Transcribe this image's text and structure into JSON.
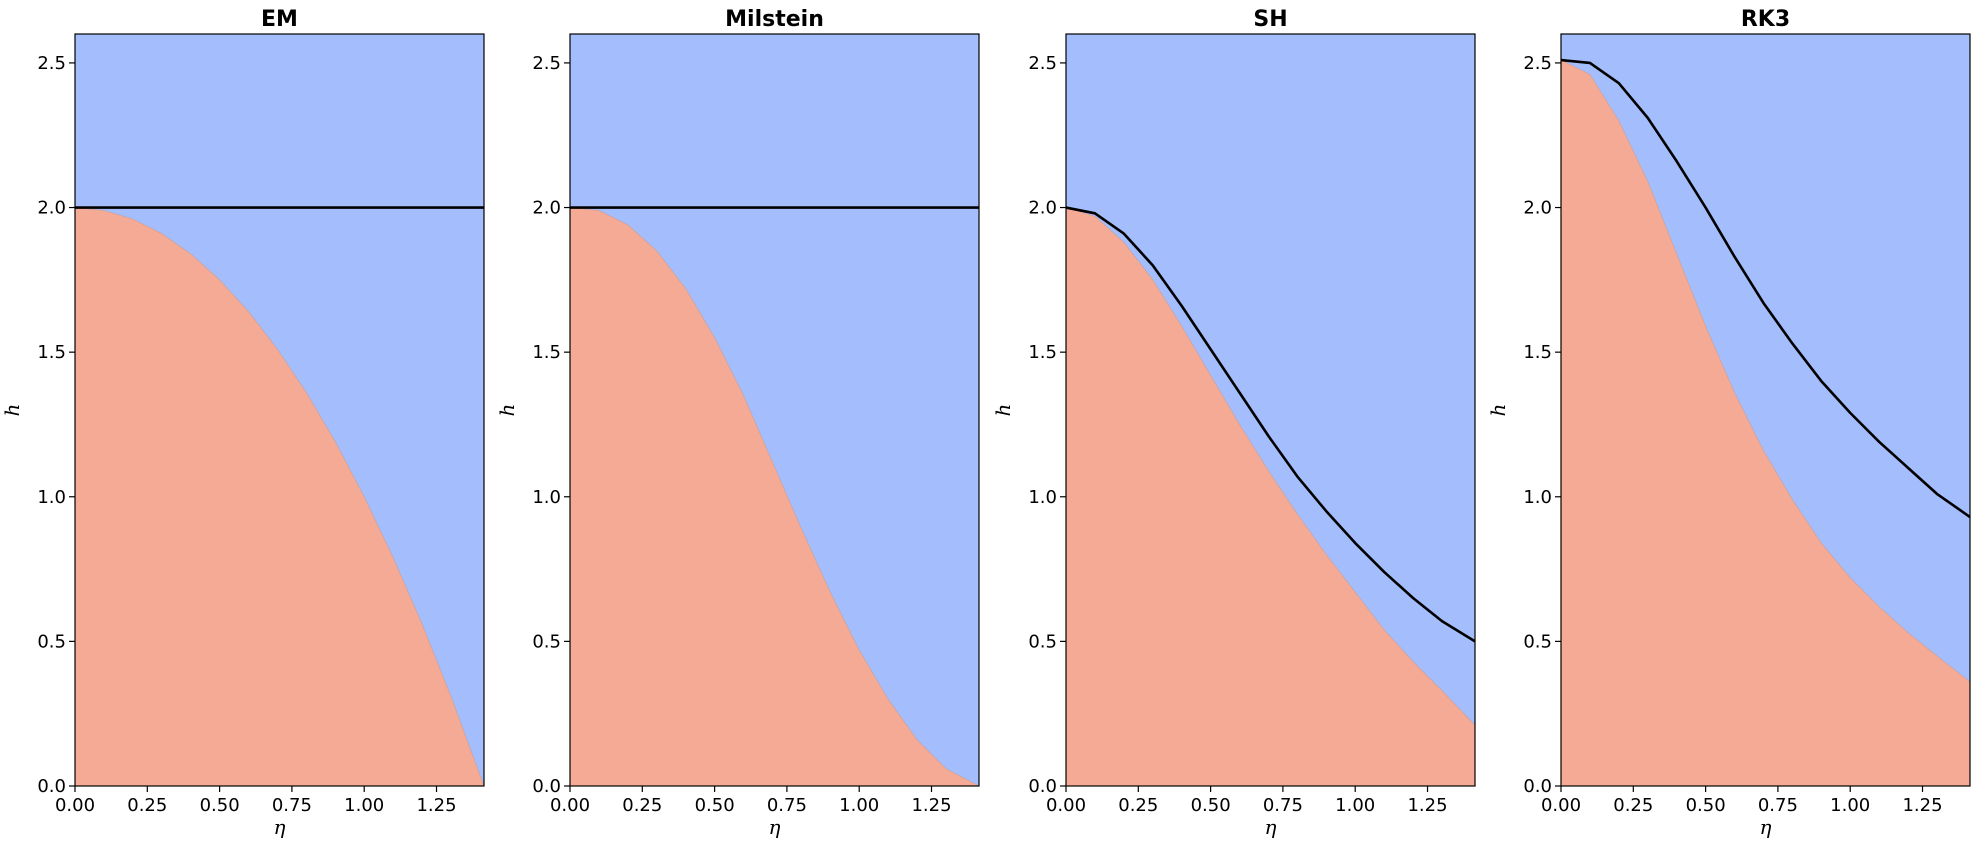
{
  "chart_data": [
    {
      "type": "area",
      "title": "EM",
      "xlabel": "η",
      "ylabel": "h",
      "xlim": [
        0,
        1.4142
      ],
      "ylim": [
        0,
        2.6
      ],
      "xticks": [
        "0.00",
        "0.25",
        "0.50",
        "0.75",
        "1.00",
        "1.25"
      ],
      "yticks": [
        "0.0",
        "0.5",
        "1.0",
        "1.5",
        "2.0",
        "2.5"
      ],
      "colors": {
        "below": "#f4aa94",
        "above": "#a4bdfc",
        "curve": "#000000"
      },
      "x": [
        0,
        0.1,
        0.2,
        0.3,
        0.4,
        0.5,
        0.6,
        0.7,
        0.8,
        0.9,
        1.0,
        1.1,
        1.2,
        1.3,
        1.4142
      ],
      "region_boundary": [
        2.0,
        1.99,
        1.96,
        1.91,
        1.84,
        1.75,
        1.64,
        1.51,
        1.36,
        1.19,
        1.0,
        0.79,
        0.56,
        0.31,
        0.0
      ],
      "curve": [
        2.0,
        2.0,
        2.0,
        2.0,
        2.0,
        2.0,
        2.0,
        2.0,
        2.0,
        2.0,
        2.0,
        2.0,
        2.0,
        2.0,
        2.0
      ]
    },
    {
      "type": "area",
      "title": "Milstein",
      "xlabel": "η",
      "ylabel": "h",
      "xlim": [
        0,
        1.4142
      ],
      "ylim": [
        0,
        2.6
      ],
      "xticks": [
        "0.00",
        "0.25",
        "0.50",
        "0.75",
        "1.00",
        "1.25"
      ],
      "yticks": [
        "0.0",
        "0.5",
        "1.0",
        "1.5",
        "2.0",
        "2.5"
      ],
      "colors": {
        "below": "#f4aa94",
        "above": "#a4bdfc",
        "curve": "#000000"
      },
      "x": [
        0,
        0.1,
        0.2,
        0.3,
        0.4,
        0.5,
        0.6,
        0.7,
        0.8,
        0.9,
        1.0,
        1.1,
        1.2,
        1.3,
        1.4142
      ],
      "region_boundary": [
        2.0,
        1.99,
        1.94,
        1.85,
        1.72,
        1.55,
        1.35,
        1.12,
        0.89,
        0.67,
        0.47,
        0.3,
        0.16,
        0.06,
        0.0
      ],
      "curve": [
        2.0,
        2.0,
        2.0,
        2.0,
        2.0,
        2.0,
        2.0,
        2.0,
        2.0,
        2.0,
        2.0,
        2.0,
        2.0,
        2.0,
        2.0
      ]
    },
    {
      "type": "area",
      "title": "SH",
      "xlabel": "η",
      "ylabel": "h",
      "xlim": [
        0,
        1.4142
      ],
      "ylim": [
        0,
        2.6
      ],
      "xticks": [
        "0.00",
        "0.25",
        "0.50",
        "0.75",
        "1.00",
        "1.25"
      ],
      "yticks": [
        "0.0",
        "0.5",
        "1.0",
        "1.5",
        "2.0",
        "2.5"
      ],
      "colors": {
        "below": "#f4aa94",
        "above": "#a4bdfc",
        "curve": "#000000"
      },
      "x": [
        0,
        0.1,
        0.2,
        0.3,
        0.4,
        0.5,
        0.6,
        0.7,
        0.8,
        0.9,
        1.0,
        1.1,
        1.2,
        1.3,
        1.4142
      ],
      "region_boundary": [
        2.0,
        1.97,
        1.88,
        1.75,
        1.59,
        1.42,
        1.25,
        1.09,
        0.94,
        0.8,
        0.67,
        0.54,
        0.43,
        0.33,
        0.21
      ],
      "curve": [
        2.0,
        1.98,
        1.91,
        1.8,
        1.66,
        1.51,
        1.36,
        1.21,
        1.07,
        0.95,
        0.84,
        0.74,
        0.65,
        0.57,
        0.5
      ]
    },
    {
      "type": "area",
      "title": "RK3",
      "xlabel": "η",
      "ylabel": "h",
      "xlim": [
        0,
        1.4142
      ],
      "ylim": [
        0,
        2.6
      ],
      "xticks": [
        "0.00",
        "0.25",
        "0.50",
        "0.75",
        "1.00",
        "1.25"
      ],
      "yticks": [
        "0.0",
        "0.5",
        "1.0",
        "1.5",
        "2.0",
        "2.5"
      ],
      "colors": {
        "below": "#f4aa94",
        "above": "#a4bdfc",
        "curve": "#000000"
      },
      "x": [
        0,
        0.1,
        0.2,
        0.3,
        0.4,
        0.5,
        0.6,
        0.7,
        0.8,
        0.9,
        1.0,
        1.1,
        1.2,
        1.3,
        1.4142
      ],
      "region_boundary": [
        2.51,
        2.46,
        2.3,
        2.09,
        1.84,
        1.59,
        1.36,
        1.16,
        0.99,
        0.84,
        0.72,
        0.62,
        0.53,
        0.45,
        0.36
      ],
      "curve": [
        2.51,
        2.5,
        2.43,
        2.31,
        2.16,
        2.0,
        1.83,
        1.67,
        1.53,
        1.4,
        1.29,
        1.19,
        1.1,
        1.01,
        0.93
      ]
    }
  ]
}
